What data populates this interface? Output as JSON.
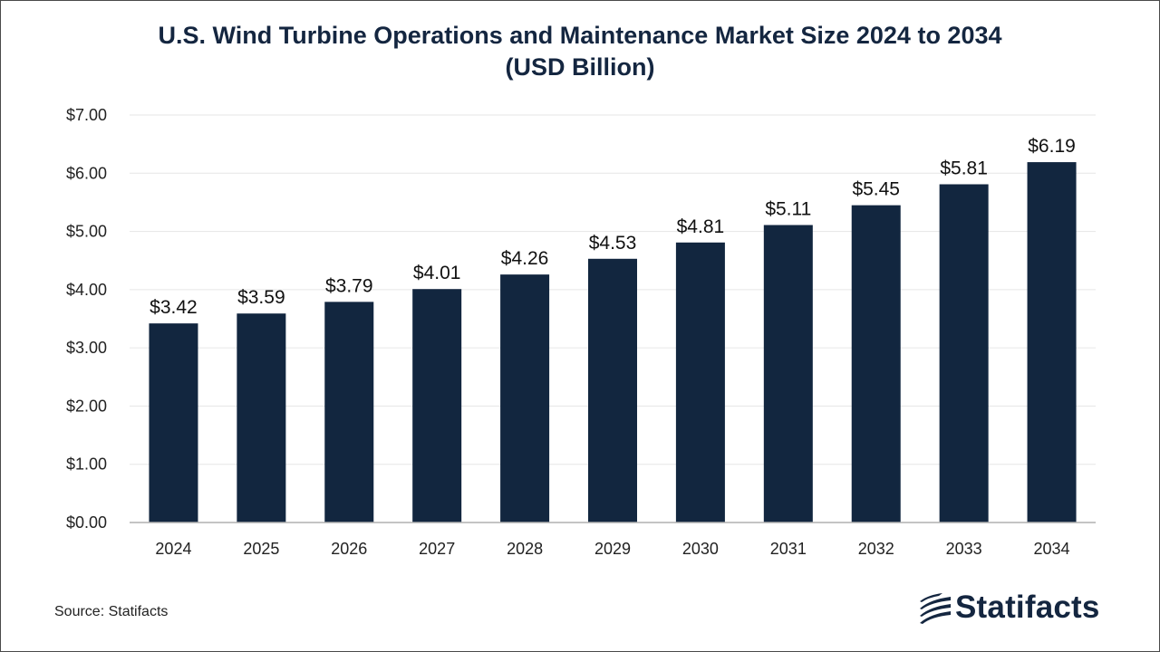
{
  "chart_data": {
    "type": "bar",
    "title_line1": "U.S. Wind Turbine Operations and Maintenance Market Size 2024 to 2034",
    "title_line2": "(USD Billion)",
    "xlabel": "",
    "ylabel": "",
    "categories": [
      "2024",
      "2025",
      "2026",
      "2027",
      "2028",
      "2029",
      "2030",
      "2031",
      "2032",
      "2033",
      "2034"
    ],
    "values": [
      3.42,
      3.59,
      3.79,
      4.01,
      4.26,
      4.53,
      4.81,
      5.11,
      5.45,
      5.81,
      6.19
    ],
    "data_labels": [
      "$3.42",
      "$3.59",
      "$3.79",
      "$4.01",
      "$4.26",
      "$4.53",
      "$4.81",
      "$5.11",
      "$5.45",
      "$5.81",
      "$6.19"
    ],
    "ylim": [
      0,
      7
    ],
    "yticks": [
      0,
      1,
      2,
      3,
      4,
      5,
      6,
      7
    ],
    "ytick_labels": [
      "$0.00",
      "$1.00",
      "$2.00",
      "$3.00",
      "$4.00",
      "$5.00",
      "$6.00",
      "$7.00"
    ],
    "grid": true,
    "legend": "none",
    "bar_color": "#12263f"
  },
  "footer": {
    "source": "Source: Statifacts",
    "logo_text": "Statifacts",
    "logo_icon": "statifacts-logo-icon"
  }
}
